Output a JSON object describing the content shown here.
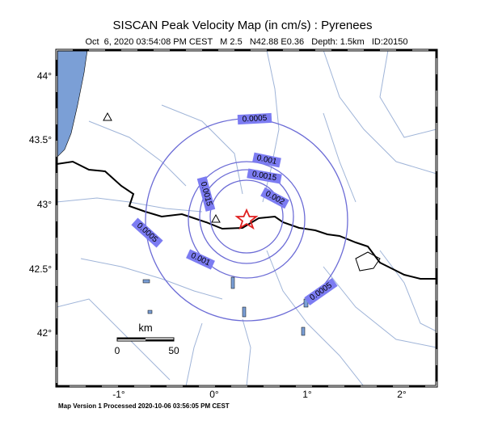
{
  "title": "SISCAN Peak Velocity Map (in cm/s) : Pyrenees",
  "subtitle": "Oct  6, 2020 03:54:08 PM CEST   M 2.5   N42.88 E0.36   Depth: 1.5km   ID:20150",
  "footer": "Map Version 1 Processed 2020-10-06 03:56:05 PM CEST",
  "map": {
    "lon_labels": [
      "-1°",
      "0°",
      "1°",
      "2°"
    ],
    "lat_labels": [
      "42°",
      "42.5°",
      "43°",
      "43.5°",
      "44°"
    ],
    "contour_labels": [
      "0.0005",
      "0.001",
      "0.0015",
      "0.002",
      "0.0015",
      "0.0005",
      "0.001",
      "0.0005"
    ],
    "scale_bar": {
      "unit": "km",
      "labels": [
        "0",
        "50"
      ]
    }
  }
}
